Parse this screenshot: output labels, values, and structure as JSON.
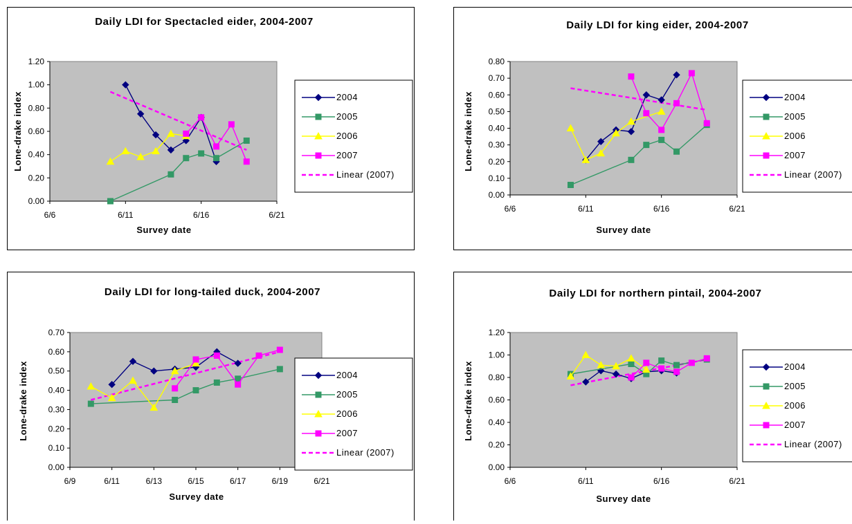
{
  "chart_data": [
    {
      "type": "line",
      "title": "Daily LDI for Spectacled eider, 2004-2007",
      "xlabel": "Survey date",
      "ylabel": "Lone-drake index",
      "x_ticks": [
        "6/6",
        "6/11",
        "6/16",
        "6/21"
      ],
      "xlim": [
        6,
        21
      ],
      "ylim": [
        0,
        1.2
      ],
      "y_ticks": [
        "0.00",
        "0.20",
        "0.40",
        "0.60",
        "0.80",
        "1.00",
        "1.20"
      ],
      "legend_position": "right",
      "series": [
        {
          "name": "2004",
          "marker": "diamond",
          "color": "#000080",
          "x": [
            11,
            12,
            13,
            14,
            15,
            16,
            17
          ],
          "y": [
            1.0,
            0.75,
            0.57,
            0.44,
            0.52,
            0.72,
            0.34
          ]
        },
        {
          "name": "2005",
          "marker": "square",
          "color": "#339966",
          "x": [
            10,
            14,
            15,
            16,
            17,
            19
          ],
          "y": [
            0.0,
            0.23,
            0.37,
            0.41,
            0.37,
            0.52
          ]
        },
        {
          "name": "2006",
          "marker": "triangle",
          "color": "#ffff00",
          "x": [
            10,
            11,
            12,
            13,
            14,
            15
          ],
          "y": [
            0.34,
            0.43,
            0.38,
            0.43,
            0.58,
            0.56
          ]
        },
        {
          "name": "2007",
          "marker": "square",
          "color": "#ff00ff",
          "x": [
            15,
            16,
            17,
            18,
            19
          ],
          "y": [
            0.58,
            0.72,
            0.47,
            0.66,
            0.34
          ]
        },
        {
          "name": "Linear (2007)",
          "style": "dashed",
          "color": "#ff00ff",
          "x": [
            10,
            19
          ],
          "y": [
            0.94,
            0.44
          ]
        }
      ]
    },
    {
      "type": "line",
      "title": "Daily LDI for king eider, 2004-2007",
      "xlabel": "Survey date",
      "ylabel": "Lone-drake index",
      "x_ticks": [
        "6/6",
        "6/11",
        "6/16",
        "6/21"
      ],
      "xlim": [
        6,
        21
      ],
      "ylim": [
        0,
        0.8
      ],
      "y_ticks": [
        "0.00",
        "0.10",
        "0.20",
        "0.30",
        "0.40",
        "0.50",
        "0.60",
        "0.70",
        "0.80"
      ],
      "legend_position": "right",
      "series": [
        {
          "name": "2004",
          "marker": "diamond",
          "color": "#000080",
          "x": [
            11,
            12,
            13,
            14,
            15,
            16,
            17
          ],
          "y": [
            0.21,
            0.32,
            0.39,
            0.38,
            0.6,
            0.57,
            0.72
          ]
        },
        {
          "name": "2005",
          "marker": "square",
          "color": "#339966",
          "x": [
            10,
            14,
            15,
            16,
            17,
            19
          ],
          "y": [
            0.06,
            0.21,
            0.3,
            0.33,
            0.26,
            0.42
          ]
        },
        {
          "name": "2006",
          "marker": "triangle",
          "color": "#ffff00",
          "x": [
            10,
            11,
            12,
            13,
            14,
            16
          ],
          "y": [
            0.4,
            0.21,
            0.25,
            0.37,
            0.44,
            0.5
          ]
        },
        {
          "name": "2007",
          "marker": "square",
          "color": "#ff00ff",
          "x": [
            14,
            15,
            16,
            17,
            18,
            19
          ],
          "y": [
            0.71,
            0.49,
            0.39,
            0.55,
            0.73,
            0.43
          ]
        },
        {
          "name": "Linear (2007)",
          "style": "dashed",
          "color": "#ff00ff",
          "x": [
            10,
            19
          ],
          "y": [
            0.64,
            0.51
          ]
        }
      ]
    },
    {
      "type": "line",
      "title": "Daily LDI for long-tailed duck, 2004-2007",
      "xlabel": "Survey date",
      "ylabel": "Lone-drake index",
      "x_ticks": [
        "6/9",
        "6/11",
        "6/13",
        "6/15",
        "6/17",
        "6/19",
        "6/21"
      ],
      "xlim": [
        9,
        21
      ],
      "ylim": [
        0,
        0.7
      ],
      "y_ticks": [
        "0.00",
        "0.10",
        "0.20",
        "0.30",
        "0.40",
        "0.50",
        "0.60",
        "0.70"
      ],
      "legend_position": "right",
      "series": [
        {
          "name": "2004",
          "marker": "diamond",
          "color": "#000080",
          "x": [
            11,
            12,
            13,
            14,
            15,
            16,
            17
          ],
          "y": [
            0.43,
            0.55,
            0.5,
            0.51,
            0.52,
            0.6,
            0.54
          ]
        },
        {
          "name": "2005",
          "marker": "square",
          "color": "#339966",
          "x": [
            10,
            14,
            15,
            16,
            17,
            19
          ],
          "y": [
            0.33,
            0.35,
            0.4,
            0.44,
            0.46,
            0.51
          ]
        },
        {
          "name": "2006",
          "marker": "triangle",
          "color": "#ffff00",
          "x": [
            10,
            11,
            12,
            13,
            14,
            15
          ],
          "y": [
            0.42,
            0.36,
            0.45,
            0.31,
            0.5,
            0.54
          ]
        },
        {
          "name": "2007",
          "marker": "square",
          "color": "#ff00ff",
          "x": [
            14,
            15,
            16,
            17,
            18,
            19
          ],
          "y": [
            0.41,
            0.56,
            0.58,
            0.43,
            0.58,
            0.61
          ]
        },
        {
          "name": "Linear (2007)",
          "style": "dashed",
          "color": "#ff00ff",
          "x": [
            10,
            19
          ],
          "y": [
            0.35,
            0.6
          ]
        }
      ]
    },
    {
      "type": "line",
      "title": "Daily LDI for northern pintail, 2004-2007",
      "xlabel": "Survey date",
      "ylabel": "Lone-drake index",
      "x_ticks": [
        "6/6",
        "6/11",
        "6/16",
        "6/21"
      ],
      "xlim": [
        6,
        21
      ],
      "ylim": [
        0,
        1.2
      ],
      "y_ticks": [
        "0.00",
        "0.20",
        "0.40",
        "0.60",
        "0.80",
        "1.00",
        "1.20"
      ],
      "legend_position": "right",
      "series": [
        {
          "name": "2004",
          "marker": "diamond",
          "color": "#000080",
          "x": [
            11,
            12,
            13,
            14,
            15,
            16,
            17
          ],
          "y": [
            0.76,
            0.86,
            0.83,
            0.79,
            0.85,
            0.86,
            0.84
          ]
        },
        {
          "name": "2005",
          "marker": "square",
          "color": "#339966",
          "x": [
            10,
            14,
            15,
            16,
            17,
            19
          ],
          "y": [
            0.83,
            0.92,
            0.83,
            0.95,
            0.91,
            0.96
          ]
        },
        {
          "name": "2006",
          "marker": "triangle",
          "color": "#ffff00",
          "x": [
            10,
            11,
            12,
            13,
            14,
            15
          ],
          "y": [
            0.81,
            1.0,
            0.91,
            0.9,
            0.97,
            0.87
          ]
        },
        {
          "name": "2007",
          "marker": "square",
          "color": "#ff00ff",
          "x": [
            14,
            15,
            16,
            17,
            18,
            19
          ],
          "y": [
            0.8,
            0.93,
            0.88,
            0.85,
            0.93,
            0.97
          ]
        },
        {
          "name": "Linear (2007)",
          "style": "dashed",
          "color": "#ff00ff",
          "x": [
            10,
            19
          ],
          "y": [
            0.73,
            0.96
          ]
        }
      ]
    }
  ]
}
